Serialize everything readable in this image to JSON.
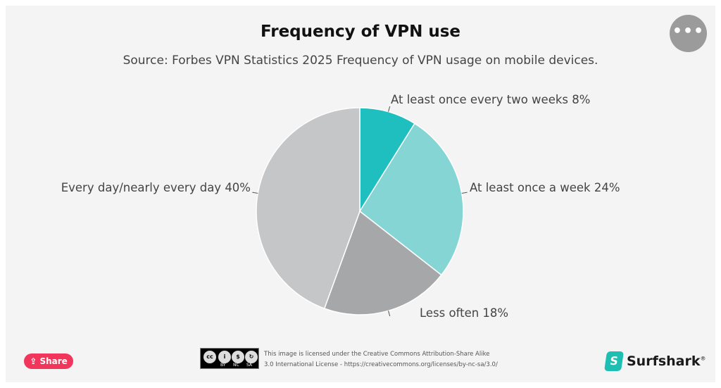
{
  "chart_data": {
    "type": "pie",
    "title": "Frequency of VPN use",
    "subtitle": "Source: Forbes VPN Statistics 2025 Frequency of VPN usage on mobile devices.",
    "slices": [
      {
        "label": "At least once every two weeks 8%",
        "value": 8,
        "color": "#1fbfbf"
      },
      {
        "label": "At least once a week 24%",
        "value": 24,
        "color": "#85d5d5"
      },
      {
        "label": "Less often 18%",
        "value": 18,
        "color": "#a6a7a9"
      },
      {
        "label": "Every day/nearly every day 40%",
        "value": 40,
        "color": "#c5c6c8"
      }
    ]
  },
  "menu_label": "•••",
  "share_label": "Share",
  "license": {
    "badge": [
      "BY",
      "NC",
      "SA"
    ],
    "line1": "This image is licensed under the Creative Commons Attribution-Share Alike",
    "line2": "3.0 International License - https://creativecommons.org/licenses/by-nc-sa/3.0/"
  },
  "brand": {
    "name": "Surfshark",
    "mark": "S",
    "registered": "®",
    "color": "#1dbfb3"
  }
}
